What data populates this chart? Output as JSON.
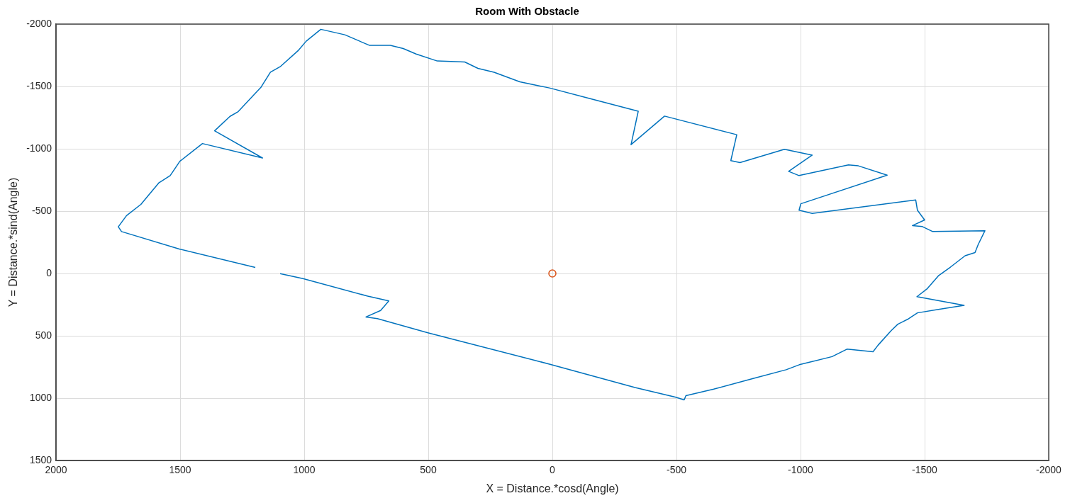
{
  "chart_data": {
    "type": "line",
    "title": "Room With Obstacle",
    "xlabel": "X = Distance.*cosd(Angle)",
    "ylabel": "Y = Distance.*sind(Angle)",
    "xlim": [
      2000,
      -2000
    ],
    "xticks": [
      2000,
      1500,
      1000,
      500,
      0,
      -500,
      -1000,
      -1500,
      -2000
    ],
    "ylim": [
      1500,
      -2000
    ],
    "yticks": [
      -2000,
      -1500,
      -1000,
      -500,
      0,
      500,
      1000,
      1500
    ],
    "grid": true,
    "legend": false,
    "series": [
      {
        "type": "line",
        "color": "#0072bd",
        "line_style": "solid",
        "marker": "none",
        "x": [
          1197,
          1501,
          1736,
          1749,
          1716,
          1658,
          1586,
          1540,
          1501,
          1410,
          1168,
          1361,
          1299,
          1266,
          1175,
          1136,
          1097,
          1025,
          992,
          933,
          836,
          738,
          653,
          601,
          549,
          464,
          353,
          300,
          235,
          131,
          53,
          12,
          -147,
          -346,
          -317,
          -452,
          -743,
          -719,
          -756,
          -935,
          -1047,
          -952,
          -994,
          -1193,
          -1233,
          -1349,
          -1001,
          -994,
          -1047,
          -1464,
          -1471,
          -1500,
          -1451,
          -1491,
          -1531,
          -1743,
          -1716,
          -1703,
          -1663,
          -1604,
          -1557,
          -1511,
          -1469,
          -1659,
          -1551,
          -1471,
          -1431,
          -1392,
          -1365,
          -1312,
          -1292,
          -1187,
          -1127,
          -995,
          -942,
          -809,
          -650,
          -538,
          -531,
          -498,
          -333,
          12,
          499,
          705,
          751,
          692,
          659,
          744,
          1005,
          1097
        ],
        "values": [
          -48,
          -195,
          -336,
          -374,
          -464,
          -554,
          -726,
          -785,
          -900,
          -1042,
          -926,
          -1144,
          -1260,
          -1298,
          -1491,
          -1614,
          -1658,
          -1786,
          -1863,
          -1958,
          -1914,
          -1830,
          -1830,
          -1804,
          -1760,
          -1704,
          -1696,
          -1645,
          -1614,
          -1537,
          -1504,
          -1488,
          -1405,
          -1301,
          -1033,
          -1262,
          -1113,
          -905,
          -889,
          -996,
          -949,
          -819,
          -785,
          -871,
          -863,
          -788,
          -559,
          -507,
          -481,
          -590,
          -507,
          -429,
          -384,
          -376,
          -337,
          -343,
          -233,
          -168,
          -142,
          -51,
          16,
          121,
          186,
          256,
          290,
          316,
          368,
          407,
          459,
          576,
          628,
          607,
          667,
          732,
          772,
          842,
          928,
          980,
          1014,
          993,
          915,
          727,
          477,
          362,
          349,
          297,
          220,
          182,
          41,
          2
        ]
      },
      {
        "type": "scatter",
        "color": "#d95319",
        "marker": "circle",
        "x": [
          0
        ],
        "values": [
          0
        ]
      }
    ]
  }
}
